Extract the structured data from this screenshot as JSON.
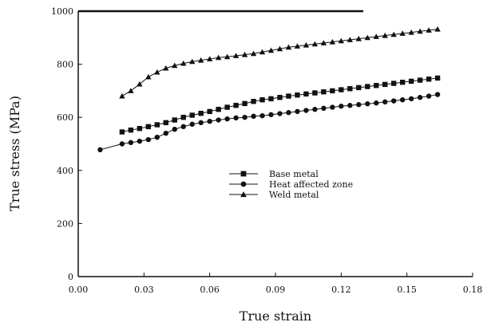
{
  "chart_data": {
    "type": "line",
    "title": "",
    "xlabel": "True strain",
    "ylabel": "True stress (MPa)",
    "xlim": [
      0.0,
      0.18
    ],
    "ylim": [
      0,
      1000
    ],
    "x_ticks": [
      0.0,
      0.03,
      0.06,
      0.09,
      0.12,
      0.15,
      0.18
    ],
    "x_tick_labels": [
      "0.00",
      "0.03",
      "0.06",
      "0.09",
      "0.12",
      "0.15",
      "0.18"
    ],
    "y_ticks": [
      0,
      200,
      400,
      600,
      800,
      1000
    ],
    "y_tick_labels": [
      "0",
      "200",
      "400",
      "600",
      "800",
      "1000"
    ],
    "grid": false,
    "legend_position": "center",
    "series": [
      {
        "name": "Base metal",
        "marker": "square",
        "x": [
          0.02,
          0.024,
          0.028,
          0.032,
          0.036,
          0.04,
          0.044,
          0.048,
          0.052,
          0.056,
          0.06,
          0.064,
          0.068,
          0.072,
          0.076,
          0.08,
          0.084,
          0.088,
          0.092,
          0.096,
          0.1,
          0.104,
          0.108,
          0.112,
          0.116,
          0.12,
          0.124,
          0.128,
          0.132,
          0.136,
          0.14,
          0.144,
          0.148,
          0.152,
          0.156,
          0.16,
          0.164
        ],
        "y": [
          545,
          552,
          558,
          565,
          572,
          580,
          590,
          600,
          608,
          615,
          622,
          630,
          638,
          645,
          652,
          660,
          666,
          670,
          675,
          680,
          684,
          688,
          692,
          696,
          700,
          704,
          708,
          712,
          716,
          720,
          724,
          728,
          732,
          736,
          740,
          744,
          748
        ]
      },
      {
        "name": "Heat affected zone",
        "marker": "circle",
        "x": [
          0.01,
          0.02,
          0.024,
          0.028,
          0.032,
          0.036,
          0.04,
          0.044,
          0.048,
          0.052,
          0.056,
          0.06,
          0.064,
          0.068,
          0.072,
          0.076,
          0.08,
          0.084,
          0.088,
          0.092,
          0.096,
          0.1,
          0.104,
          0.108,
          0.112,
          0.116,
          0.12,
          0.124,
          0.128,
          0.132,
          0.136,
          0.14,
          0.144,
          0.148,
          0.152,
          0.156,
          0.16,
          0.164
        ],
        "y": [
          478,
          500,
          505,
          510,
          516,
          525,
          540,
          555,
          565,
          574,
          580,
          585,
          590,
          594,
          598,
          600,
          604,
          606,
          610,
          614,
          618,
          622,
          626,
          630,
          634,
          638,
          642,
          645,
          648,
          651,
          654,
          658,
          662,
          666,
          670,
          675,
          680,
          686
        ]
      },
      {
        "name": "Weld metal",
        "marker": "triangle",
        "x": [
          0.02,
          0.024,
          0.028,
          0.032,
          0.036,
          0.04,
          0.044,
          0.048,
          0.052,
          0.056,
          0.06,
          0.064,
          0.068,
          0.072,
          0.076,
          0.08,
          0.084,
          0.088,
          0.092,
          0.096,
          0.1,
          0.104,
          0.108,
          0.112,
          0.116,
          0.12,
          0.124,
          0.128,
          0.132,
          0.136,
          0.14,
          0.144,
          0.148,
          0.152,
          0.156,
          0.16,
          0.164
        ],
        "y": [
          680,
          700,
          725,
          752,
          770,
          785,
          795,
          803,
          810,
          815,
          820,
          825,
          828,
          832,
          836,
          840,
          846,
          852,
          858,
          864,
          868,
          872,
          876,
          880,
          884,
          888,
          892,
          896,
          900,
          904,
          908,
          912,
          916,
          920,
          924,
          928,
          932
        ]
      }
    ]
  },
  "colors": {
    "axis": "#111111",
    "series": "#111111"
  }
}
